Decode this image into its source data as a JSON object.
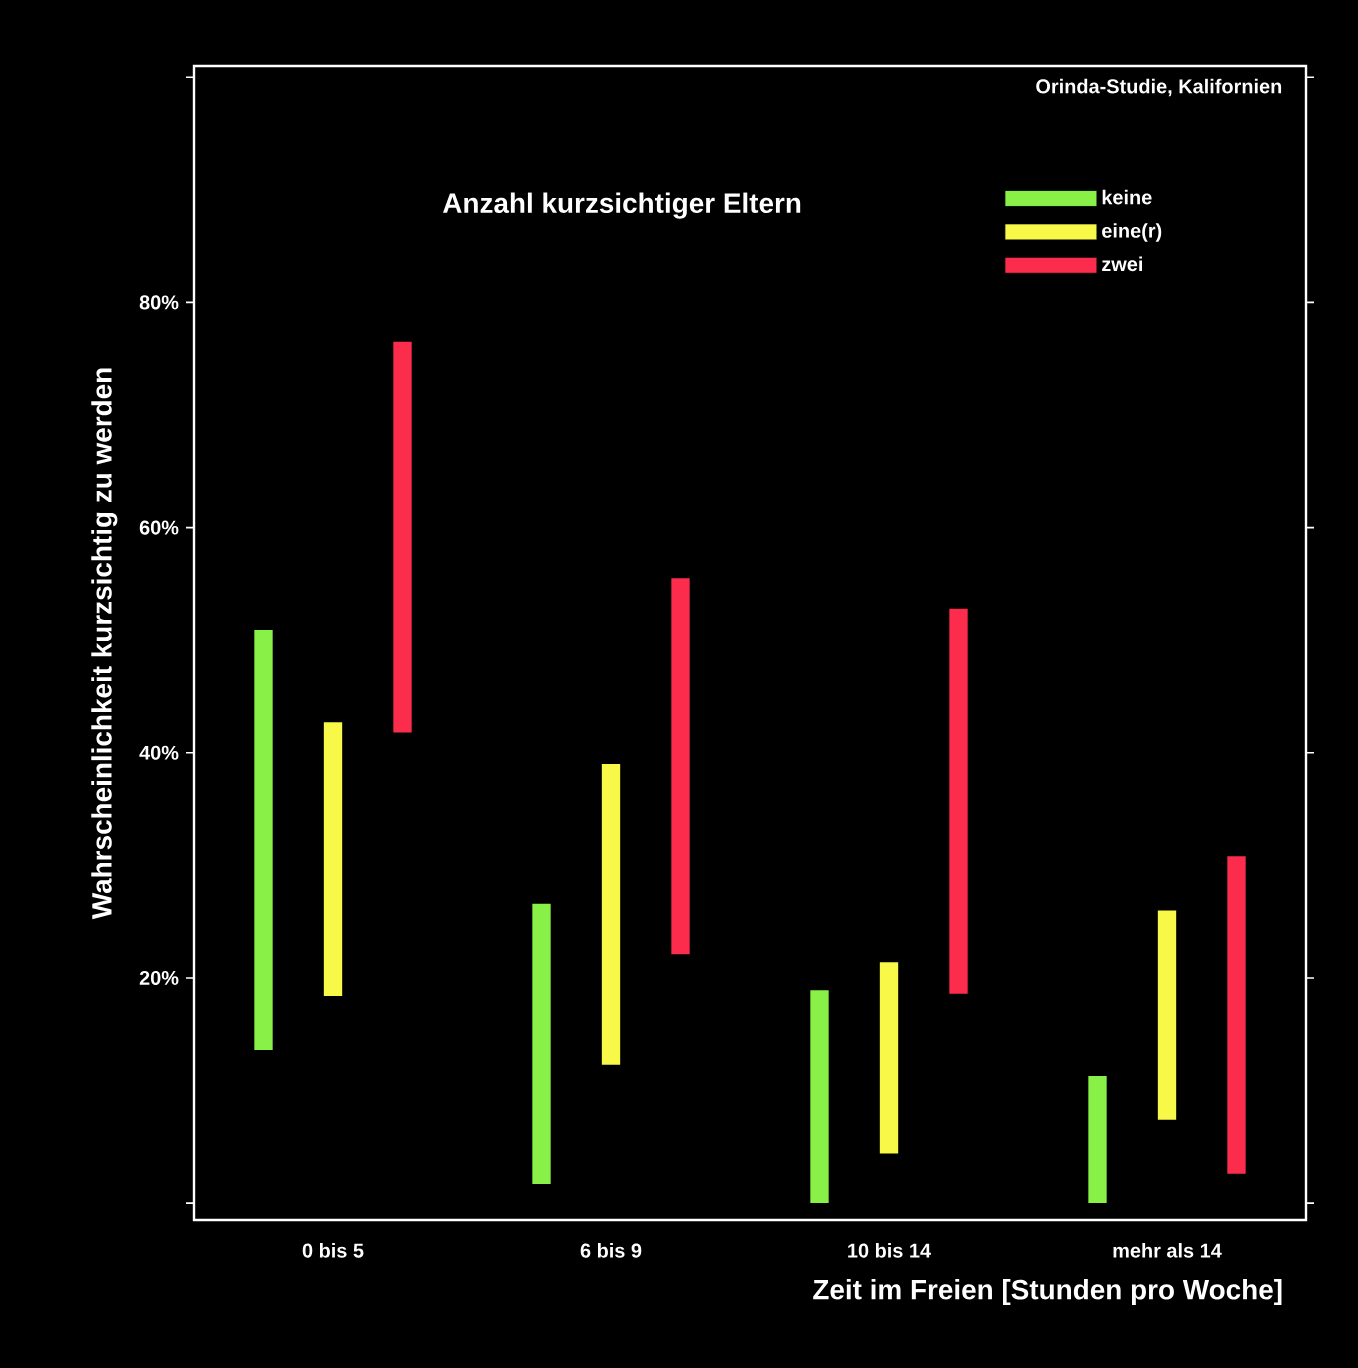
{
  "chart_data": {
    "type": "bar",
    "xlabel": "Zeit im Freien [Stunden pro Woche]",
    "ylabel": "Wahrscheinlichkeit kurzsichtig zu werden",
    "legend_title": "Anzahl kurzsichtiger Eltern",
    "legend": "top right",
    "annotations": [
      "Orinda-Studie, Kalifornien"
    ],
    "categories": [
      "0 bis 5",
      "6 bis 9",
      "10 bis 14",
      "mehr als 14"
    ],
    "ylim": [
      -1.5,
      101
    ],
    "yticks": [
      {
        "value": 0,
        "label": null
      },
      {
        "value": 20,
        "label": "20%"
      },
      {
        "value": 40,
        "label": "40%"
      },
      {
        "value": 60,
        "label": "60%"
      },
      {
        "value": 80,
        "label": "80%"
      },
      {
        "value": 100,
        "label": null
      }
    ],
    "series": [
      {
        "name": "keine",
        "color": "#88f046",
        "base": [
          13.6,
          1.7,
          0,
          0
        ],
        "values": [
          37.3,
          24.9,
          18.9,
          11.3
        ]
      },
      {
        "name": "eine(r)",
        "color": "#f8f848",
        "base": [
          18.4,
          12.3,
          4.4,
          7.4
        ],
        "values": [
          24.3,
          26.7,
          17.0,
          18.6
        ]
      },
      {
        "name": "zwei",
        "color": "#fc2c4c",
        "base": [
          41.8,
          22.1,
          18.6,
          2.6
        ],
        "values": [
          34.7,
          33.4,
          34.2,
          28.2
        ]
      }
    ]
  }
}
